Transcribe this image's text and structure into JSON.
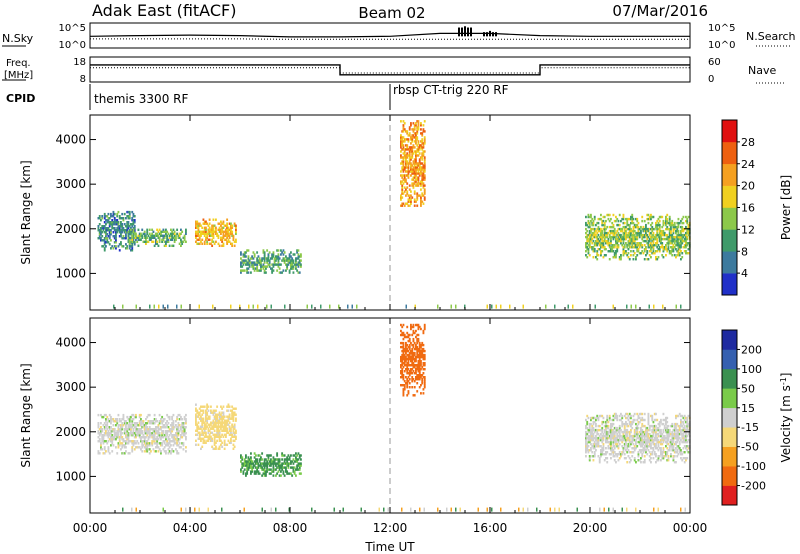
{
  "header": {
    "station": "Adak East (fitACF)",
    "beam": "Beam 02",
    "date": "07/Mar/2016"
  },
  "colors": {
    "power_scale": [
      "#2030c8",
      "#3c7a9e",
      "#3f9a6a",
      "#8cc84a",
      "#f0d020",
      "#f5a020",
      "#ee6010",
      "#e01010"
    ],
    "velocity_scale": [
      "#e02020",
      "#f06a10",
      "#f5a020",
      "#f5d878",
      "#cfcfcf",
      "#7acb4a",
      "#3a9050",
      "#3560b0",
      "#1e2aa0"
    ]
  },
  "panels": {
    "nsky_label": "N.Sky",
    "nsearch_label": "N.Search",
    "nsky_ticks": [
      "10^5",
      "10^0"
    ],
    "nsearch_ticks": [
      "10^5",
      "10^0"
    ],
    "freq_label_line1": "Freq.",
    "freq_label_line2": "[MHz]",
    "freq_ticks": [
      "18",
      "8"
    ],
    "nave_label": "Nave",
    "nave_ticks": [
      "60",
      "0"
    ],
    "cpid_label": "CPID",
    "cpid_segments": [
      "themis 3300 RF",
      "rbsp CT-trig 220 RF"
    ]
  },
  "chart_data": [
    {
      "type": "line",
      "panel": "N.Sky / N.Search",
      "x": [
        "00:00",
        "02:00",
        "04:00",
        "06:00",
        "08:00",
        "10:00",
        "12:00",
        "14:00",
        "15:00",
        "16:00",
        "18:00",
        "20:00",
        "22:00",
        "24:00"
      ],
      "series": [
        {
          "name": "N.Sky",
          "values": [
            200,
            300,
            400,
            300,
            150,
            150,
            200,
            1000,
            50000,
            4000,
            300,
            200,
            200,
            200
          ]
        },
        {
          "name": "N.Search",
          "values": [
            50,
            50,
            50,
            50,
            40,
            40,
            40,
            40,
            40,
            40,
            40,
            40,
            40,
            40
          ]
        }
      ]
    },
    {
      "type": "line",
      "panel": "Freq. / Nave",
      "x_hours": [
        0,
        10,
        10,
        18,
        18,
        24
      ],
      "series": [
        {
          "name": "Freq.",
          "values": [
            15.2,
            15.2,
            10.5,
            10.5,
            15.2,
            15.2
          ]
        },
        {
          "name": "Nave",
          "values": [
            35,
            35,
            20,
            20,
            35,
            35
          ]
        }
      ]
    },
    {
      "type": "heatmap",
      "panel": "Power",
      "xlabel": "",
      "ylabel": "Slant Range [km]",
      "yticks": [
        1000,
        2000,
        3000,
        4000
      ],
      "ylim": [
        180,
        4550
      ],
      "xlim_hours": [
        0,
        24
      ],
      "colorbar_label": "Power [dB]",
      "colorbar_ticks": [
        4,
        8,
        12,
        16,
        20,
        24,
        28
      ],
      "colorbar_range": [
        0,
        32
      ],
      "echo_regions": [
        {
          "t": [
            0.3,
            1.8
          ],
          "range_km": [
            1500,
            2400
          ],
          "power_db": 8
        },
        {
          "t": [
            1.5,
            3.8
          ],
          "range_km": [
            1600,
            2000
          ],
          "power_db": 12
        },
        {
          "t": [
            4.2,
            5.8
          ],
          "range_km": [
            1600,
            2200
          ],
          "power_db": 20
        },
        {
          "t": [
            6.0,
            8.4
          ],
          "range_km": [
            1000,
            1500
          ],
          "power_db": 10
        },
        {
          "t": [
            12.4,
            13.4
          ],
          "range_km": [
            2500,
            4400
          ],
          "power_db": 22
        },
        {
          "t": [
            19.8,
            24.0
          ],
          "range_km": [
            1300,
            2300
          ],
          "power_db": 14
        }
      ]
    },
    {
      "type": "heatmap",
      "panel": "Velocity",
      "xlabel": "Time UT",
      "ylabel": "Slant Range [km]",
      "yticks": [
        1000,
        2000,
        3000,
        4000
      ],
      "ylim": [
        180,
        4550
      ],
      "xlim_hours": [
        0,
        24
      ],
      "xticks": [
        "00:00",
        "04:00",
        "08:00",
        "12:00",
        "16:00",
        "20:00",
        "00:00"
      ],
      "colorbar_label": "Velocity [m s^-1]",
      "colorbar_ticks": [
        "200",
        "100",
        "50",
        "15",
        "-15",
        "-50",
        "-100",
        "-200"
      ],
      "echo_regions": [
        {
          "t": [
            0.3,
            3.8
          ],
          "range_km": [
            1500,
            2400
          ],
          "velocity": 0
        },
        {
          "t": [
            4.2,
            5.8
          ],
          "range_km": [
            1600,
            2600
          ],
          "velocity": -30
        },
        {
          "t": [
            6.0,
            8.4
          ],
          "range_km": [
            1000,
            1500
          ],
          "velocity": 60
        },
        {
          "t": [
            12.4,
            13.4
          ],
          "range_km": [
            2800,
            4400
          ],
          "velocity": -150
        },
        {
          "t": [
            19.8,
            24.0
          ],
          "range_km": [
            1300,
            2400
          ],
          "velocity": 0
        }
      ]
    }
  ]
}
